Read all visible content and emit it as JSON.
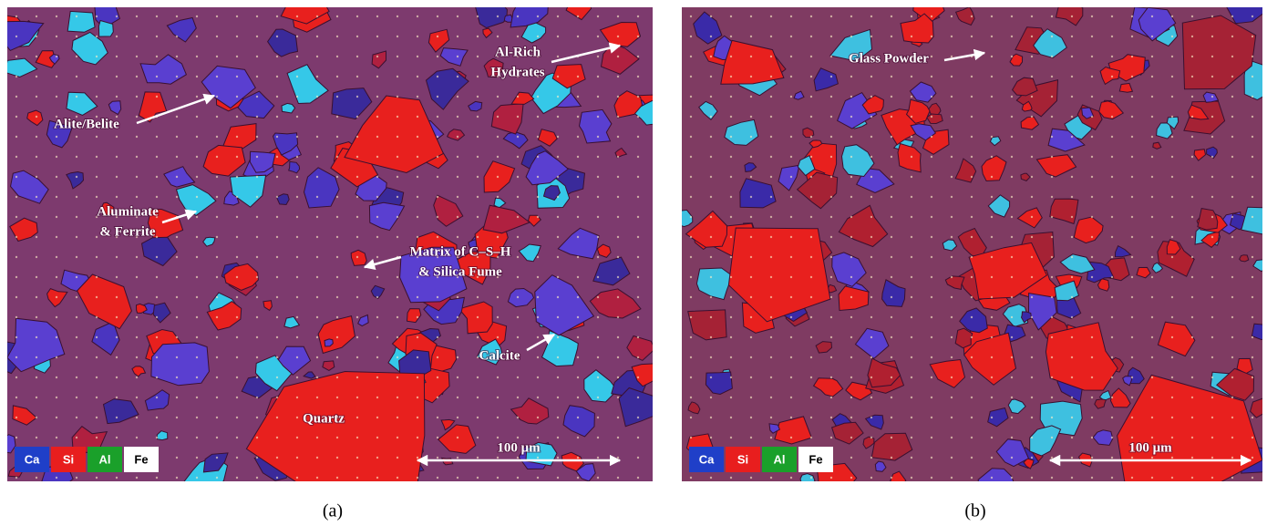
{
  "panels": [
    {
      "caption": "(a)",
      "annotations": [
        {
          "lines": [
            "Al-Rich",
            "Hydrates"
          ]
        },
        {
          "lines": [
            "Alite/Belite"
          ]
        },
        {
          "lines": [
            "Aluminate",
            "& Ferrite"
          ]
        },
        {
          "lines": [
            "Matrix of C–S–H",
            "& Silica Fume"
          ]
        },
        {
          "lines": [
            "Calcite"
          ]
        },
        {
          "lines": [
            "Quartz"
          ]
        }
      ],
      "legend": [
        "Ca",
        "Si",
        "Al",
        "Fe"
      ],
      "scale_bar": "100 μm"
    },
    {
      "caption": "(b)",
      "annotations": [
        {
          "lines": [
            "Glass Powder"
          ]
        }
      ],
      "legend": [
        "Ca",
        "Si",
        "Al",
        "Fe"
      ],
      "scale_bar": "100 μm"
    }
  ]
}
